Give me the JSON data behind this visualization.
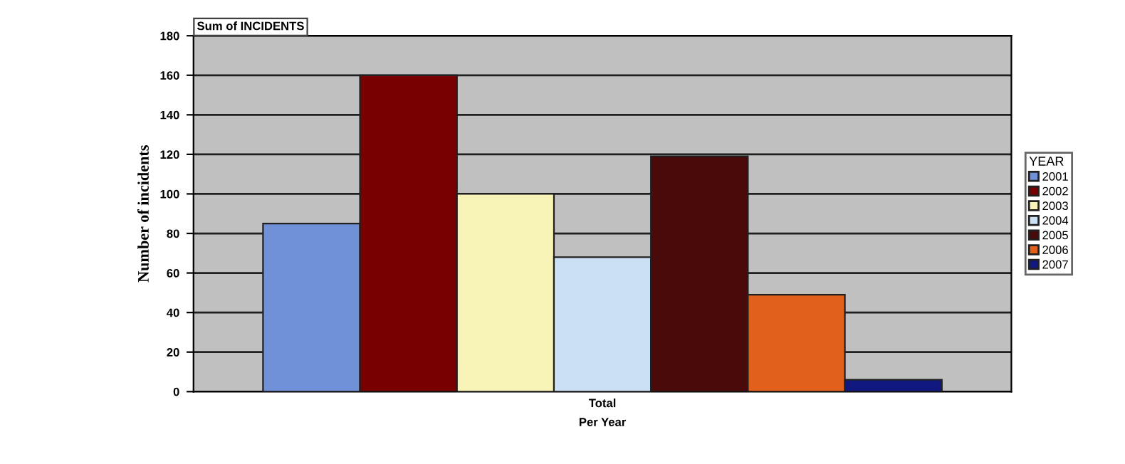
{
  "chart_data": {
    "type": "bar",
    "categories": [
      "Total"
    ],
    "xlabel": "Per Year",
    "ylabel": "Number of incidents",
    "legend_title": "YEAR",
    "annotations": [
      "Sum of INCIDENTS"
    ],
    "series": [
      {
        "name": "2001",
        "color": "#7090d8",
        "values": [
          85
        ]
      },
      {
        "name": "2002",
        "color": "#780000",
        "values": [
          160
        ]
      },
      {
        "name": "2003",
        "color": "#f8f4b8",
        "values": [
          100
        ]
      },
      {
        "name": "2004",
        "color": "#cce0f4",
        "values": [
          68
        ]
      },
      {
        "name": "2005",
        "color": "#4a0a0a",
        "values": [
          119
        ]
      },
      {
        "name": "2006",
        "color": "#e0601c",
        "values": [
          49
        ]
      },
      {
        "name": "2007",
        "color": "#101880",
        "values": [
          6
        ]
      }
    ],
    "ylim": [
      0,
      180
    ],
    "yticks": [
      0,
      20,
      40,
      60,
      80,
      100,
      120,
      140,
      160,
      180
    ],
    "grid": "y",
    "legend": "right"
  }
}
